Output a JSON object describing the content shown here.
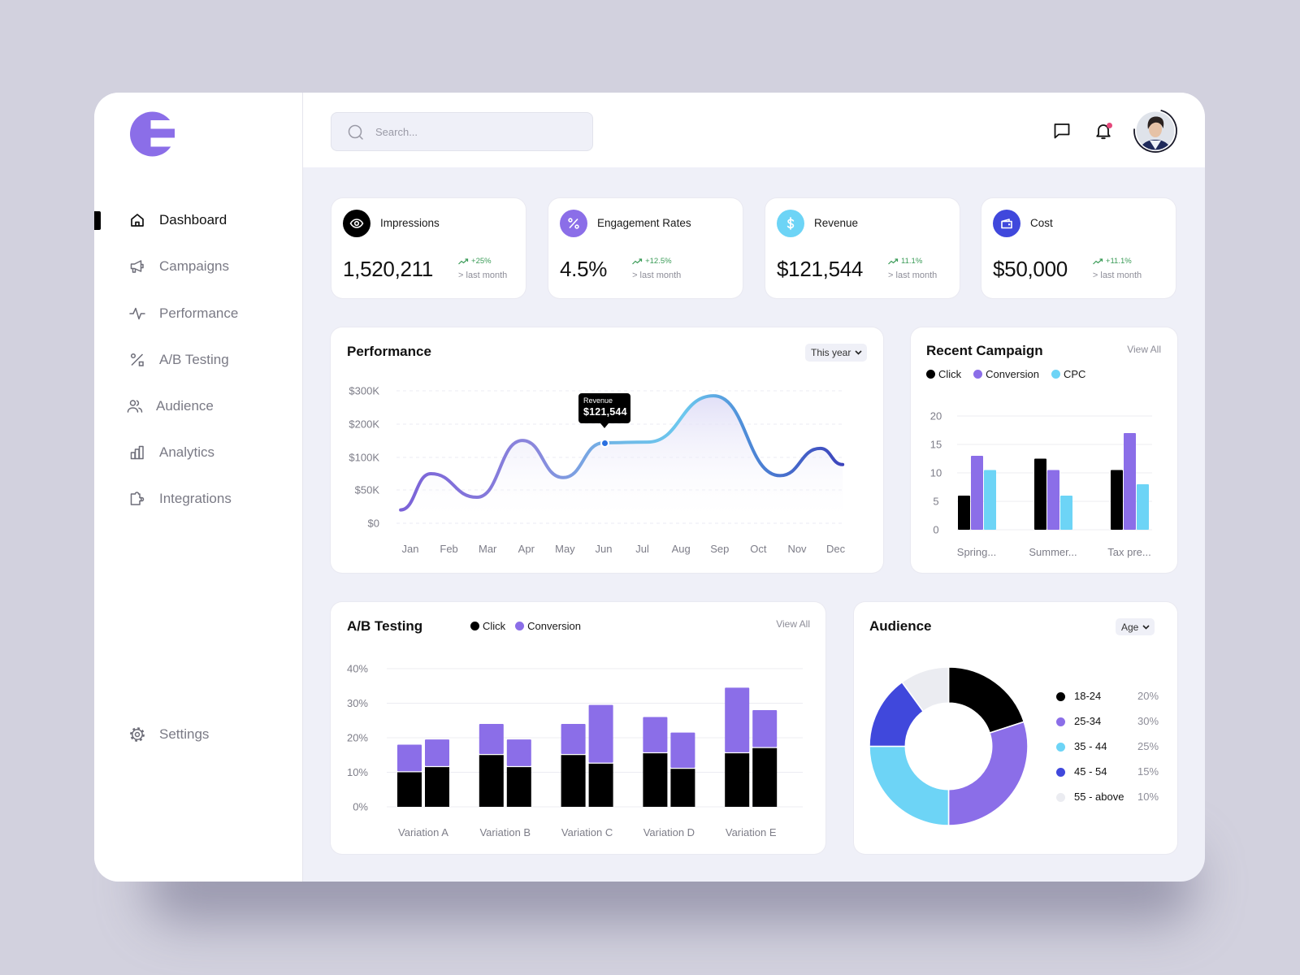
{
  "app": {
    "logo_icon": "e-logo-icon",
    "brand_color": "#8b6ee8"
  },
  "sidebar": {
    "items": [
      {
        "label": "Dashboard",
        "icon": "home-icon",
        "active": true
      },
      {
        "label": "Campaigns",
        "icon": "megaphone-icon",
        "active": false
      },
      {
        "label": "Performance",
        "icon": "activity-icon",
        "active": false
      },
      {
        "label": "A/B Testing",
        "icon": "percent-icon",
        "active": false
      },
      {
        "label": "Audience",
        "icon": "users-icon",
        "active": false
      },
      {
        "label": "Analytics",
        "icon": "bar-chart-icon",
        "active": false
      },
      {
        "label": "Integrations",
        "icon": "puzzle-icon",
        "active": false
      }
    ],
    "settings": {
      "label": "Settings",
      "icon": "gear-icon"
    }
  },
  "header": {
    "search": {
      "placeholder": "Search...",
      "value": ""
    },
    "icons": [
      "chat-icon",
      "bell-icon"
    ],
    "notification_dot_color": "#e5487b"
  },
  "stats": [
    {
      "label": "Impressions",
      "value": "1,520,211",
      "change": "+25%",
      "period": "> last month",
      "icon": "eye-icon",
      "color": "#000000"
    },
    {
      "label": "Engagement Rates",
      "value": "4.5%",
      "change": "+12.5%",
      "period": "> last month",
      "icon": "percent-icon",
      "color": "#8b6ee8"
    },
    {
      "label": "Revenue",
      "value": "$121,544",
      "change": "11.1%",
      "period": "> last month",
      "icon": "dollar-icon",
      "color": "#6dd4f6"
    },
    {
      "label": "Cost",
      "value": "$50,000",
      "change": "+11.1%",
      "period": "> last month",
      "icon": "wallet-icon",
      "color": "#4048dc"
    }
  ],
  "performance": {
    "title": "Performance",
    "filter": "This year",
    "tooltip": {
      "label": "Revenue",
      "value": "$121,544"
    }
  },
  "recent_campaign": {
    "title": "Recent Campaign",
    "view_all": "View All"
  },
  "ab_testing": {
    "title": "A/B Testing",
    "view_all": "View All"
  },
  "audience": {
    "title": "Audience",
    "filter": "Age"
  },
  "colors": {
    "trend_up": "#3a9b57",
    "text_muted": "#8d8d98",
    "card_bg": "#ffffff",
    "page_bg": "#eff0f8"
  },
  "chart_data": [
    {
      "type": "line",
      "title": "Performance",
      "xlabel": "",
      "ylabel": "",
      "categories": [
        "Jan",
        "Feb",
        "Mar",
        "Apr",
        "May",
        "Jun",
        "Jul",
        "Aug",
        "Sep",
        "Oct",
        "Nov",
        "Dec"
      ],
      "series": [
        {
          "name": "Revenue",
          "values": [
            55000,
            60000,
            54000,
            150000,
            69000,
            121544,
            145000,
            190000,
            285000,
            105000,
            90000,
            100000
          ]
        }
      ],
      "y_tick_labels": [
        "$300K",
        "$200K",
        "$100K",
        "$50K",
        "$0"
      ],
      "y_tick_values": [
        300000,
        200000,
        100000,
        50000,
        0
      ],
      "curve_points_k": [
        [
          -0.25,
          20
        ],
        [
          0.53,
          75
        ],
        [
          1.72,
          39
        ],
        [
          2.9,
          151
        ],
        [
          3.95,
          69
        ],
        [
          5.0,
          144
        ],
        [
          6.13,
          146
        ],
        [
          7.84,
          285
        ],
        [
          9.56,
          72
        ],
        [
          10.6,
          127
        ],
        [
          11.18,
          89
        ]
      ],
      "highlight": {
        "category": "Jun",
        "label": "Revenue",
        "value": 121544
      },
      "grid": true,
      "filter": "This year"
    },
    {
      "type": "bar",
      "title": "Recent Campaign",
      "categories": [
        "Spring...",
        "Summer...",
        "Tax pre..."
      ],
      "series": [
        {
          "name": "Click",
          "color": "#000000",
          "values": [
            6,
            12.5,
            10.5
          ]
        },
        {
          "name": "Conversion",
          "color": "#8b6ee8",
          "values": [
            13,
            10.5,
            17
          ]
        },
        {
          "name": "CPC",
          "color": "#6dd4f6",
          "values": [
            10.5,
            6,
            8
          ]
        }
      ],
      "y_ticks": [
        20,
        15,
        10,
        5,
        0
      ],
      "ylim": [
        0,
        20
      ],
      "legend_position": "top",
      "grid": true
    },
    {
      "type": "bar",
      "stacked": true,
      "title": "A/B Testing",
      "categories": [
        "Variation A",
        "Variation B",
        "Variation C",
        "Variation D",
        "Variation E"
      ],
      "bars_per_category": 2,
      "series": [
        {
          "name": "Click",
          "color": "#000000",
          "values": [
            [
              10,
              11.5
            ],
            [
              15,
              11.5
            ],
            [
              15,
              12.5
            ],
            [
              15.5,
              11
            ],
            [
              15.5,
              17
            ]
          ]
        },
        {
          "name": "Conversion",
          "color": "#8b6ee8",
          "values": [
            [
              8,
              8
            ],
            [
              9,
              8
            ],
            [
              9,
              17
            ],
            [
              10.5,
              10.5
            ],
            [
              19,
              11
            ]
          ]
        }
      ],
      "y_ticks": [
        40,
        30,
        20,
        10,
        0
      ],
      "y_tick_labels": [
        "40%",
        "30%",
        "20%",
        "10%",
        "0%"
      ],
      "ylim": [
        0,
        40
      ],
      "legend_position": "top",
      "grid": true
    },
    {
      "type": "pie",
      "donut": true,
      "title": "Audience",
      "categories": [
        "18-24",
        "25-34",
        "35 - 44",
        "45 - 54",
        "55 - above"
      ],
      "values": [
        20,
        30,
        25,
        15,
        10
      ],
      "value_labels": [
        "20%",
        "30%",
        "25%",
        "15%",
        "10%"
      ],
      "colors": [
        "#000000",
        "#8b6ee8",
        "#6dd4f6",
        "#4048dc",
        "#ebecf1"
      ],
      "legend_position": "right",
      "filter": "Age"
    }
  ]
}
